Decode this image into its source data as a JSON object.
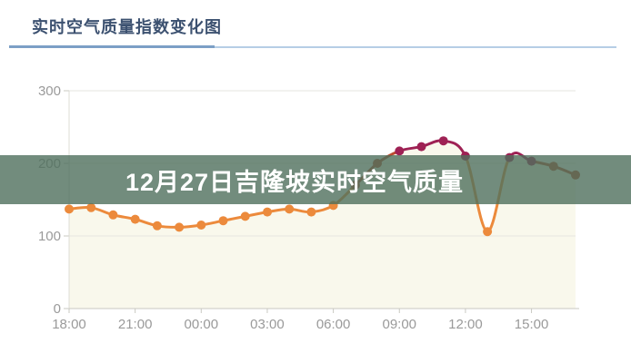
{
  "header": {
    "title": "实时空气质量指数变化图"
  },
  "banner": {
    "title": "12月27日吉隆坡实时空气质量"
  },
  "colors": {
    "title_text": "#3C5170",
    "title_rule_accent": "#7C9FC6",
    "title_rule_light": "#B6CEE5",
    "banner_bg": "rgba(79,111,92,0.80)",
    "banner_text": "#FFFFFF",
    "area_fill": "#F9F8EC",
    "grid_line": "#E6E6DF",
    "axis_line": "#C9C9C2",
    "axis_tick": "#C9C9C2",
    "y_axis_line": "#DDDDD6",
    "axis_text": "#9A9A9A"
  },
  "chart_data": {
    "type": "line",
    "title": "实时空气质量指数变化图",
    "series_name": "实时空气质量指数",
    "x": [
      "18:00",
      "19:00",
      "20:00",
      "21:00",
      "22:00",
      "23:00",
      "00:00",
      "01:00",
      "02:00",
      "03:00",
      "04:00",
      "05:00",
      "06:00",
      "07:00",
      "08:00",
      "09:00",
      "10:00",
      "11:00",
      "12:00",
      "13:00",
      "14:00",
      "15:00",
      "16:00",
      "17:00"
    ],
    "values": [
      137,
      139,
      129,
      123,
      114,
      112,
      115,
      121,
      127,
      133,
      137,
      133,
      142,
      170,
      200,
      217,
      223,
      231,
      210,
      106,
      208,
      203,
      196,
      184
    ],
    "xlabel": "",
    "ylabel": "",
    "ylim": [
      0,
      300
    ],
    "y_ticks": [
      0,
      100,
      200,
      300
    ],
    "x_tick_labels": [
      "18:00",
      "21:00",
      "00:00",
      "03:00",
      "06:00",
      "09:00",
      "12:00",
      "15:00"
    ],
    "x_tick_every": 3,
    "grid": true,
    "smooth": true,
    "area": true,
    "legend_position": "none",
    "marker_radius": 5,
    "line_width": 3,
    "aqi_color_levels": [
      {
        "max": 150,
        "color": "#EC8A3C"
      },
      {
        "max": 200,
        "color": "#BC4A2F"
      },
      {
        "max": 9999,
        "color": "#9E2154"
      }
    ]
  }
}
